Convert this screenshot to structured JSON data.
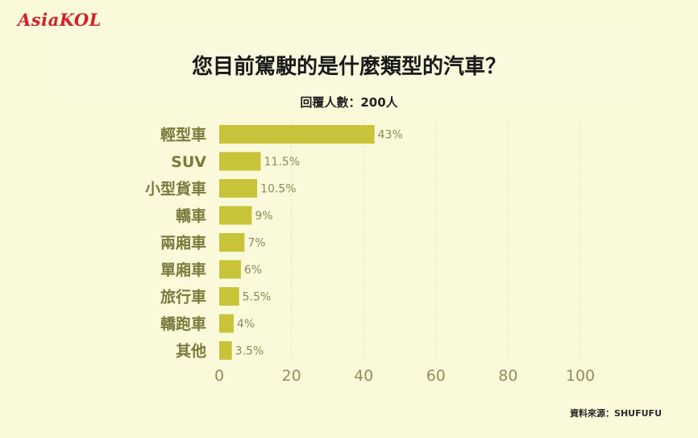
{
  "brand": {
    "logo_text": "AsiaKOL"
  },
  "header": {
    "title": "您目前駕駛的是什麼類型的汽車？",
    "subtitle": "回覆人數：200人"
  },
  "footer": {
    "source": "資料來源：SHUFUFU"
  },
  "colors": {
    "bar": "#c8c43a",
    "category_text": "#7a7a3c",
    "value_text": "#8a8a5a",
    "tick_text": "#8f8f5a",
    "gridline": "#e2e2c2",
    "background": "#fafadb",
    "logo": "#d4202a"
  },
  "chart_data": {
    "type": "bar",
    "orientation": "horizontal",
    "categories": [
      "輕型車",
      "SUV",
      "小型貨車",
      "轎車",
      "兩廂車",
      "單廂車",
      "旅行車",
      "轎跑車",
      "其他"
    ],
    "values": [
      43,
      11.5,
      10.5,
      9,
      7,
      6,
      5.5,
      4,
      3.5
    ],
    "value_labels": [
      "43%",
      "11.5%",
      "10.5%",
      "9%",
      "7%",
      "6%",
      "5.5%",
      "4%",
      "3.5%"
    ],
    "xlim": [
      0,
      100
    ],
    "x_ticks": [
      0,
      20,
      40,
      60,
      80,
      100
    ],
    "x_tick_labels": [
      "0",
      "20",
      "40",
      "60",
      "80",
      "100"
    ],
    "grid": true,
    "grid_style": "dashed vertical"
  }
}
